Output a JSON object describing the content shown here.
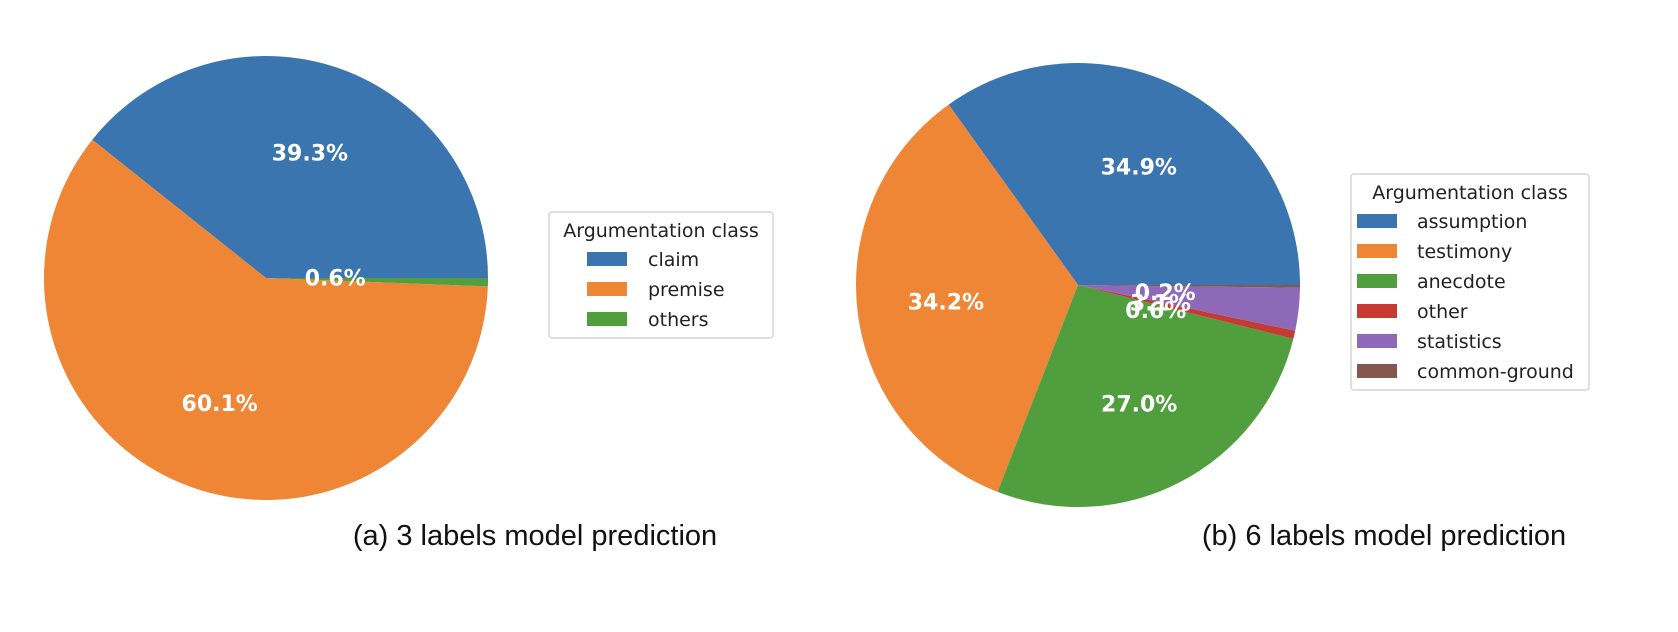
{
  "chart_data": [
    {
      "type": "pie",
      "caption": "(a) 3 labels model prediction",
      "legend": {
        "title": "Argumentation class",
        "placement": "right"
      },
      "slices": [
        {
          "label": "claim",
          "value": 39.3,
          "pct_label": "39.3%",
          "color": "#3b75af"
        },
        {
          "label": "premise",
          "value": 60.1,
          "pct_label": "60.1%",
          "color": "#ef8636"
        },
        {
          "label": "others",
          "value": 0.6,
          "pct_label": "0.6%",
          "color": "#519e3e"
        }
      ]
    },
    {
      "type": "pie",
      "caption": "(b) 6 labels model prediction",
      "legend": {
        "title": "Argumentation class",
        "placement": "right"
      },
      "slices": [
        {
          "label": "assumption",
          "value": 34.9,
          "pct_label": "34.9%",
          "color": "#3b75af"
        },
        {
          "label": "testimony",
          "value": 34.2,
          "pct_label": "34.2%",
          "color": "#ef8636"
        },
        {
          "label": "anecdote",
          "value": 27.0,
          "pct_label": "27.0%",
          "color": "#519e3e"
        },
        {
          "label": "other",
          "value": 0.6,
          "pct_label": "0.6%",
          "color": "#c53a32"
        },
        {
          "label": "statistics",
          "value": 3.1,
          "pct_label": "3.1%",
          "color": "#8d69b8"
        },
        {
          "label": "common-ground",
          "value": 0.2,
          "pct_label": "0.2%",
          "color": "#84584e"
        }
      ]
    }
  ]
}
